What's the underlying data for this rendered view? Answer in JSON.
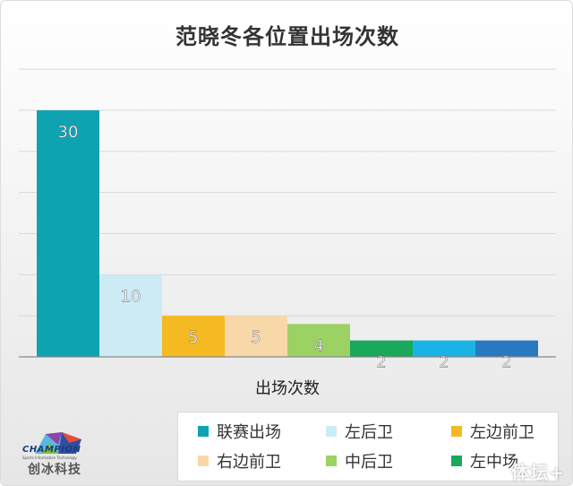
{
  "chart_data": {
    "type": "bar",
    "title": "范晓冬各位置出场次数",
    "xlabel": "出场次数",
    "ylabel": "",
    "ylim": [
      0,
      30
    ],
    "grid": true,
    "legend_position": "bottom-right",
    "series": [
      {
        "name": "联赛出场",
        "value": 30,
        "color": "#0fa3b1"
      },
      {
        "name": "左后卫",
        "value": 10,
        "color": "#cdebf5"
      },
      {
        "name": "左边前卫",
        "value": 5,
        "color": "#f5b922"
      },
      {
        "name": "右边前卫",
        "value": 5,
        "color": "#f8d7a8"
      },
      {
        "name": "中后卫",
        "value": 4,
        "color": "#9bd263"
      },
      {
        "name": "左中场",
        "value": 2,
        "color": "#1aa85a"
      },
      {
        "name": "",
        "value": 2,
        "color": "#1ab3e6"
      },
      {
        "name": "",
        "value": 2,
        "color": "#2a78c2"
      }
    ]
  },
  "logo": {
    "word": "CHAMPION",
    "sub": "Sports Information Technology",
    "cn": "创冰科技"
  },
  "watermark": "体坛+"
}
